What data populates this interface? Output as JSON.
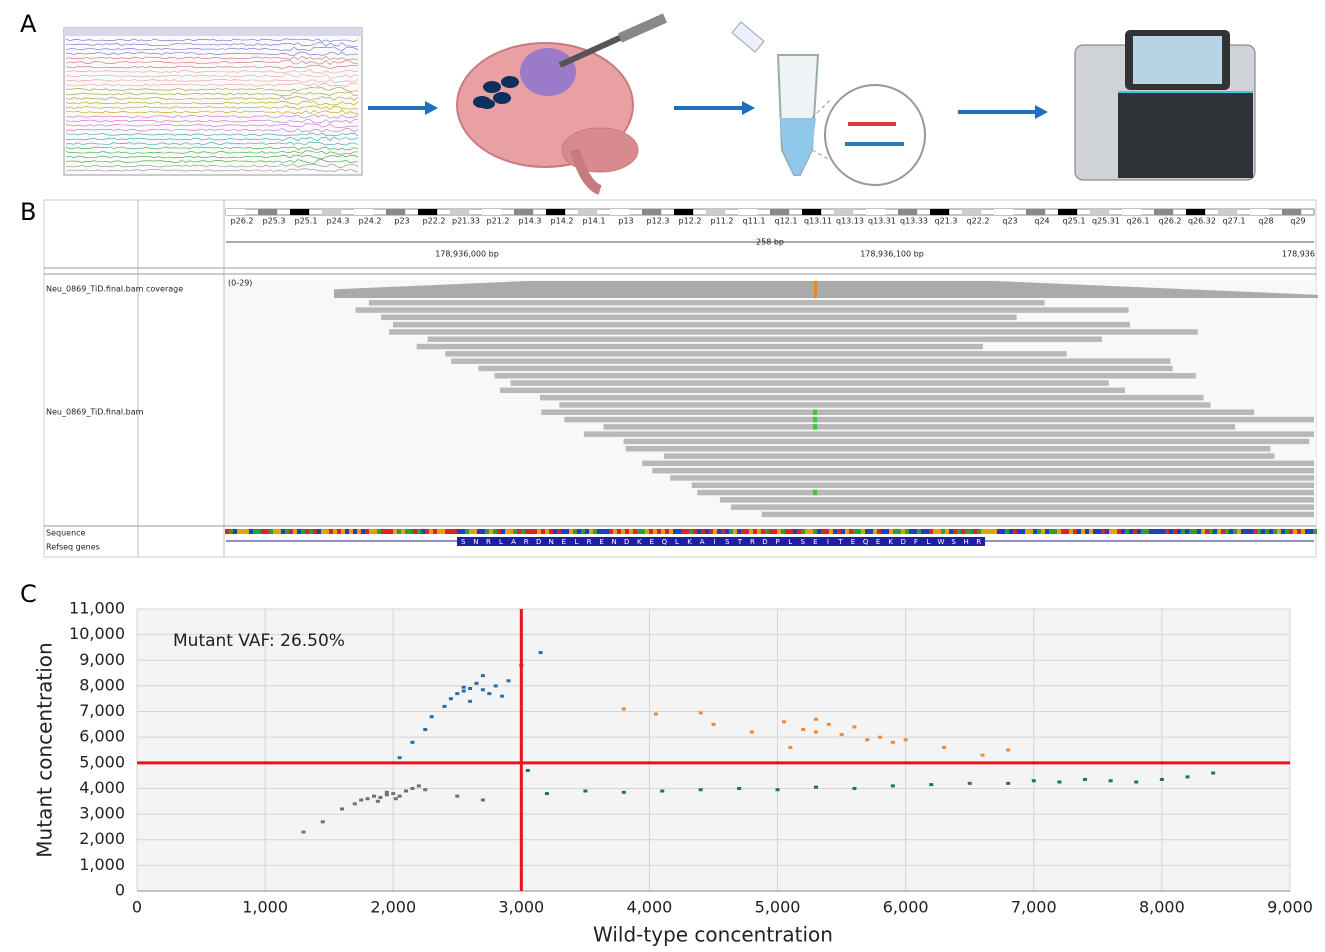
{
  "panels": {
    "a": "A",
    "b": "B",
    "c": "C"
  },
  "genome": {
    "bands": [
      "p26.2",
      "p25.3",
      "p25.1",
      "p24.3",
      "p24.2",
      "p23",
      "p22.2",
      "p21.33",
      "p21.2",
      "p14.3",
      "p14.2",
      "p14.1",
      "p13",
      "p12.3",
      "p12.2",
      "p11.2",
      "q11.1",
      "q12.1",
      "q13.11",
      "q13.13",
      "q13.31",
      "q13.33",
      "q21.3",
      "q22.2",
      "q23",
      "q24",
      "q25.1",
      "q25.31",
      "q26.1",
      "q26.2",
      "q26.32",
      "q27.1",
      "q28",
      "q29"
    ],
    "span": "258 bp",
    "positions": [
      "178,936,000 bp",
      "178,936,100 bp",
      "178,936"
    ],
    "coverage_track": "Neu_0869_TiD.final.bam coverage",
    "coverage_range": "(0-29)",
    "reads_track": "Neu_0869_TiD.final.bam",
    "sequence_track": "Sequence",
    "genes_track": "Refseq genes",
    "amino_acids": [
      "S",
      "N",
      "R",
      "L",
      "A",
      "R",
      "D",
      "N",
      "E",
      "L",
      "R",
      "E",
      "N",
      "D",
      "K",
      "E",
      "Q",
      "L",
      "K",
      "A",
      "I",
      "S",
      "T",
      "R",
      "D",
      "P",
      "L",
      "S",
      "E",
      "I",
      "T",
      "E",
      "Q",
      "E",
      "K",
      "D",
      "F",
      "L",
      "W",
      "S",
      "H",
      "R"
    ]
  },
  "chart_data": {
    "type": "scatter",
    "xlabel": "Wild-type concentration",
    "ylabel": "Mutant concentration",
    "annotation": "Mutant VAF: 26.50%",
    "xlim": [
      0,
      9000
    ],
    "ylim": [
      0,
      11000
    ],
    "xticks": [
      0,
      {
        "value": 1000,
        "label": "1,000"
      },
      {
        "value": 2000,
        "label": "2,000"
      },
      {
        "value": 3000,
        "label": "3,000"
      },
      {
        "value": 4000,
        "label": "4,000"
      },
      {
        "value": 5000,
        "label": "5,000"
      },
      {
        "value": 6000,
        "label": "6,000"
      },
      {
        "value": 7000,
        "label": "7,000"
      },
      {
        "value": 8000,
        "label": "8,000"
      },
      {
        "value": 9000,
        "label": "9,000"
      }
    ],
    "yticks": [
      0,
      {
        "value": 1000,
        "label": "1,000"
      },
      {
        "value": 2000,
        "label": "2,000"
      },
      {
        "value": 3000,
        "label": "3,000"
      },
      {
        "value": 4000,
        "label": "4,000"
      },
      {
        "value": 5000,
        "label": "5,000"
      },
      {
        "value": 6000,
        "label": "6,000"
      },
      {
        "value": 7000,
        "label": "7,000"
      },
      {
        "value": 8000,
        "label": "8,000"
      },
      {
        "value": 9000,
        "label": "9,000"
      },
      {
        "value": 10000,
        "label": "10,000"
      },
      {
        "value": 11000,
        "label": "11,000"
      }
    ],
    "grid": true,
    "thresholds": {
      "x": 3000,
      "y": 5000,
      "color": "#e8141b"
    },
    "series": [
      {
        "color": "#707070",
        "x": [
          1300,
          1450,
          1600,
          1700,
          1750,
          1800,
          1850,
          1900,
          1950,
          2000,
          2050,
          2100,
          2150,
          2200,
          2250,
          1880,
          1950,
          2020,
          2500,
          2700
        ],
        "y": [
          2300,
          2700,
          3200,
          3400,
          3550,
          3600,
          3700,
          3650,
          3750,
          3800,
          3700,
          3900,
          4000,
          4100,
          3950,
          3500,
          3850,
          3600,
          3700,
          3550
        ]
      },
      {
        "color": "#1f6fb2",
        "x": [
          2050,
          2150,
          2250,
          2300,
          2400,
          2450,
          2500,
          2550,
          2600,
          2650,
          2700,
          2750,
          2800,
          2850,
          2900,
          2600,
          2700,
          3000,
          3150,
          2550
        ],
        "y": [
          5200,
          5800,
          6300,
          6800,
          7200,
          7500,
          7700,
          7800,
          7900,
          8100,
          7850,
          7700,
          8000,
          7600,
          8200,
          7400,
          8400,
          8800,
          9300,
          7950
        ]
      },
      {
        "color": "#f0883a",
        "x": [
          3800,
          4050,
          4400,
          4500,
          4800,
          5050,
          5200,
          5300,
          5400,
          5500,
          5600,
          5700,
          5800,
          5900,
          6000,
          5100,
          5300,
          6300,
          6600,
          6800
        ],
        "y": [
          7100,
          6900,
          6950,
          6500,
          6200,
          6600,
          6300,
          6700,
          6500,
          6100,
          6400,
          5900,
          6000,
          5800,
          5900,
          5600,
          6200,
          5600,
          5300,
          5500
        ]
      },
      {
        "color": "#1b7a3e",
        "x": [
          3050,
          3200,
          3500,
          3800,
          4100,
          4400,
          4700,
          5000,
          5300,
          5600,
          5900,
          6200,
          6500,
          6800,
          7000,
          7200,
          7400,
          7600,
          7800,
          8000,
          8200,
          8400
        ],
        "y": [
          4700,
          3800,
          3900,
          3850,
          3900,
          3950,
          4000,
          3950,
          4050,
          4000,
          4100,
          4150,
          4200,
          4200,
          4300,
          4250,
          4350,
          4300,
          4250,
          4350,
          4450,
          4600
        ]
      }
    ]
  }
}
